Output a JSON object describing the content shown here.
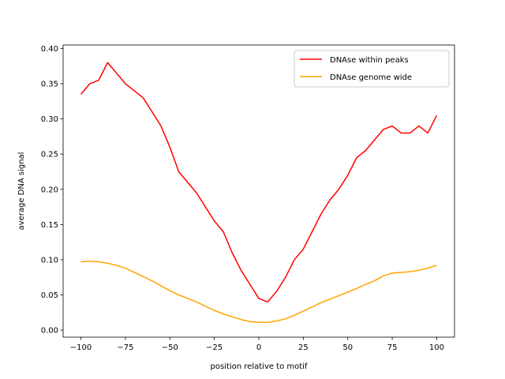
{
  "chart_data": {
    "type": "line",
    "title": "",
    "xlabel": "position relative to motif",
    "ylabel": "average DNA signal",
    "xlim": [
      -110,
      110
    ],
    "ylim": [
      -0.01,
      0.405
    ],
    "xticks": [
      -100,
      -75,
      -50,
      -25,
      0,
      25,
      50,
      75,
      100
    ],
    "xtick_labels": [
      "−100",
      "−75",
      "−50",
      "−25",
      "0",
      "25",
      "50",
      "75",
      "100"
    ],
    "yticks": [
      0.0,
      0.05,
      0.1,
      0.15,
      0.2,
      0.25,
      0.3,
      0.35,
      0.4
    ],
    "ytick_labels": [
      "0.00",
      "0.05",
      "0.10",
      "0.15",
      "0.20",
      "0.25",
      "0.30",
      "0.35",
      "0.40"
    ],
    "grid": false,
    "legend_position": "top-right",
    "x": [
      -100,
      -95,
      -90,
      -85,
      -80,
      -75,
      -70,
      -65,
      -60,
      -55,
      -50,
      -45,
      -40,
      -35,
      -30,
      -25,
      -20,
      -15,
      -10,
      -5,
      0,
      5,
      10,
      15,
      20,
      25,
      30,
      35,
      40,
      45,
      50,
      55,
      60,
      65,
      70,
      75,
      80,
      85,
      90,
      95,
      100
    ],
    "series": [
      {
        "name": "DNAse within peaks",
        "color": "#ff0000",
        "values": [
          0.335,
          0.35,
          0.355,
          0.38,
          0.365,
          0.35,
          0.34,
          0.33,
          0.31,
          0.29,
          0.26,
          0.225,
          0.21,
          0.195,
          0.175,
          0.155,
          0.14,
          0.11,
          0.085,
          0.065,
          0.045,
          0.04,
          0.055,
          0.075,
          0.1,
          0.115,
          0.14,
          0.165,
          0.185,
          0.2,
          0.22,
          0.245,
          0.255,
          0.27,
          0.285,
          0.29,
          0.28,
          0.28,
          0.29,
          0.28,
          0.305
        ]
      },
      {
        "name": "DNAse genome wide",
        "color": "#ffa500",
        "values": [
          0.097,
          0.098,
          0.097,
          0.095,
          0.092,
          0.088,
          0.082,
          0.076,
          0.07,
          0.063,
          0.056,
          0.05,
          0.045,
          0.04,
          0.034,
          0.028,
          0.023,
          0.019,
          0.015,
          0.012,
          0.011,
          0.011,
          0.013,
          0.016,
          0.021,
          0.027,
          0.033,
          0.039,
          0.044,
          0.049,
          0.054,
          0.059,
          0.065,
          0.07,
          0.077,
          0.081,
          0.082,
          0.083,
          0.085,
          0.088,
          0.092
        ]
      }
    ]
  }
}
